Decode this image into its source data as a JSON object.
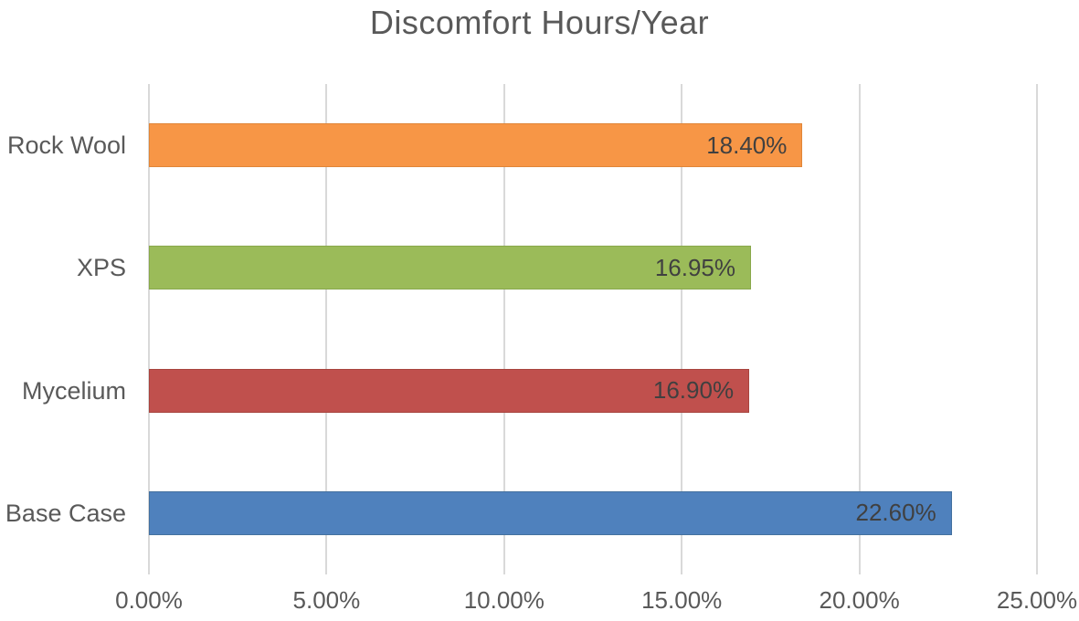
{
  "chart_data": {
    "type": "bar",
    "orientation": "horizontal",
    "title": "Discomfort Hours/Year",
    "categories": [
      "Rock Wool",
      "XPS",
      "Mycelium",
      "Base Case"
    ],
    "values": [
      18.4,
      16.95,
      16.9,
      22.6
    ],
    "value_labels": [
      "18.40%",
      "16.95%",
      "16.90%",
      "22.60%"
    ],
    "bar_colors": [
      "#F79646",
      "#9BBB59",
      "#C0504D",
      "#4F81BD"
    ],
    "bar_border_colors": [
      "#E08639",
      "#89A84C",
      "#A8453F",
      "#44719F"
    ],
    "xlim": [
      0,
      25
    ],
    "x_ticks": [
      {
        "label": "0.00%",
        "value": 0
      },
      {
        "label": "5.00%",
        "value": 5
      },
      {
        "label": "10.00%",
        "value": 10
      },
      {
        "label": "15.00%",
        "value": 15
      },
      {
        "label": "20.00%",
        "value": 20
      },
      {
        "label": "25.00%",
        "value": 25
      }
    ],
    "grid": true,
    "legend": false,
    "gridline_color": "#D9D9D9",
    "axis_text_color": "#595959",
    "category_text_color": "#595959",
    "data_label_color": "#404040",
    "title_color": "#595959",
    "background": "#FFFFFF"
  }
}
